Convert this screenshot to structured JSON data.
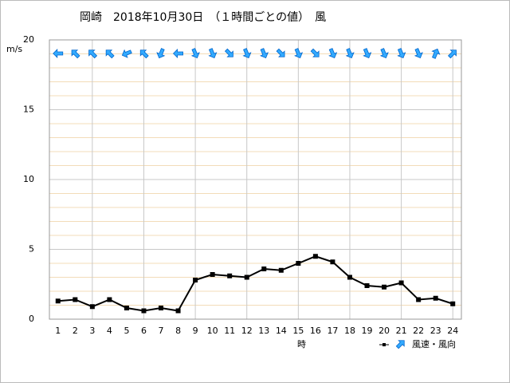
{
  "chart_data": {
    "type": "line",
    "title": "岡崎　2018年10月30日　（１時間ごとの値）　風",
    "y_label": "m/s",
    "x_label": "時",
    "legend_label": "風速・風向",
    "x": [
      1,
      2,
      3,
      4,
      5,
      6,
      7,
      8,
      9,
      10,
      11,
      12,
      13,
      14,
      15,
      16,
      17,
      18,
      19,
      20,
      21,
      22,
      23,
      24
    ],
    "xlim": [
      0.5,
      24.5
    ],
    "ylim": [
      0,
      20
    ],
    "yticks": [
      0,
      5,
      10,
      15,
      20
    ],
    "minor_yticks": [
      1,
      2,
      3,
      4,
      6,
      7,
      8,
      9,
      11,
      12,
      13,
      14,
      16,
      17,
      18,
      19
    ],
    "grid": true,
    "series": [
      {
        "name": "風速",
        "color": "#000000",
        "values": [
          1.3,
          1.4,
          0.9,
          1.4,
          0.8,
          0.6,
          0.8,
          0.6,
          2.8,
          3.2,
          3.1,
          3.0,
          3.6,
          3.5,
          4.0,
          4.5,
          4.1,
          3.0,
          2.4,
          2.3,
          2.6,
          1.4,
          1.5,
          1.1
        ]
      }
    ],
    "wind_arrow_angles": [
      270,
      315,
      315,
      315,
      247.5,
      315,
      202.5,
      270,
      157.5,
      157.5,
      135,
      157.5,
      157.5,
      135,
      157.5,
      135,
      157.5,
      157.5,
      157.5,
      157.5,
      157.5,
      157.5,
      22.5,
      45
    ],
    "arrow_color": "#33aaff"
  }
}
